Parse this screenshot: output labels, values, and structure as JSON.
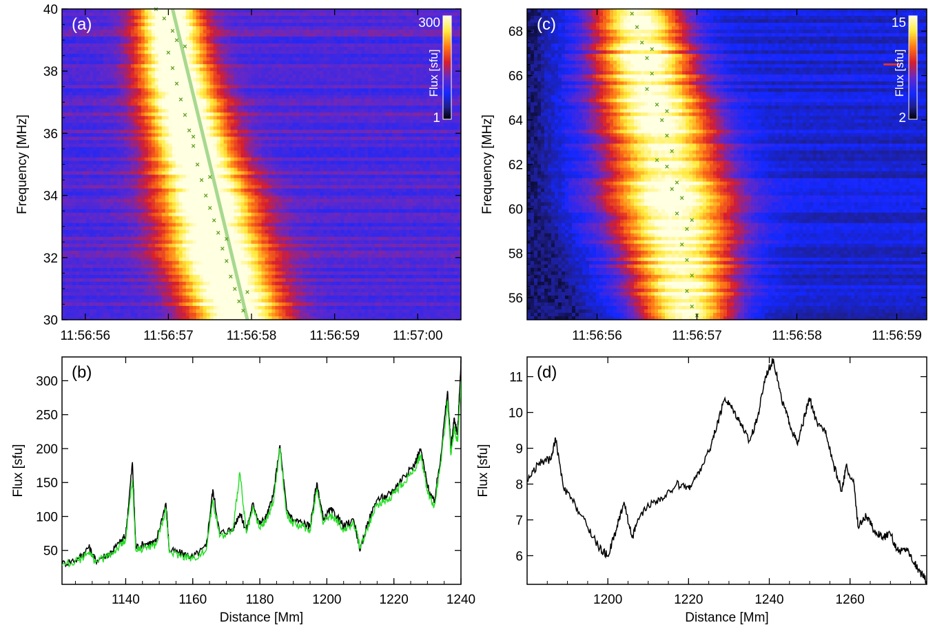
{
  "chart_data": [
    {
      "panel": "(a)",
      "type": "heatmap",
      "ylabel": "Frequency [MHz]",
      "xlabel": "",
      "ylim": [
        30,
        40
      ],
      "yticks": [
        "30",
        "32",
        "34",
        "36",
        "38",
        "40"
      ],
      "xticks": [
        "11:56:56",
        "11:56:57",
        "11:56:58",
        "11:56:59",
        "11:57:00"
      ],
      "colorbar": {
        "label": "Flux [sfu]",
        "min_label": "1",
        "max_label": "300",
        "min": 1,
        "max": 300
      },
      "fit_line": {
        "t_start_s": 57.05,
        "f_start": 40.0,
        "t_end_s": 57.95,
        "f_end": 30.0,
        "color": "#a8d890"
      },
      "burst_ridge": [
        {
          "f": 40.0,
          "t_center_s": 57.0,
          "width_s": 0.45
        },
        {
          "f": 38.0,
          "t_center_s": 57.08,
          "width_s": 0.55
        },
        {
          "f": 36.0,
          "t_center_s": 57.25,
          "width_s": 0.6
        },
        {
          "f": 34.0,
          "t_center_s": 57.45,
          "width_s": 0.7
        },
        {
          "f": 32.0,
          "t_center_s": 57.6,
          "width_s": 0.75
        },
        {
          "f": 30.0,
          "t_center_s": 57.85,
          "width_s": 0.7
        }
      ],
      "peak_markers": [
        [
          56.85,
          40.0
        ],
        [
          56.95,
          39.7
        ],
        [
          57.05,
          39.3
        ],
        [
          57.1,
          39.0
        ],
        [
          57.0,
          38.6
        ],
        [
          57.05,
          38.1
        ],
        [
          57.1,
          37.6
        ],
        [
          57.15,
          37.1
        ],
        [
          57.2,
          36.6
        ],
        [
          57.25,
          36.1
        ],
        [
          57.3,
          35.6
        ],
        [
          57.35,
          35.0
        ],
        [
          57.4,
          34.5
        ],
        [
          57.45,
          34.0
        ],
        [
          57.5,
          33.6
        ],
        [
          57.55,
          33.2
        ],
        [
          57.6,
          32.8
        ],
        [
          57.65,
          32.3
        ],
        [
          57.7,
          31.9
        ],
        [
          57.75,
          31.4
        ],
        [
          57.8,
          31.0
        ],
        [
          57.85,
          30.6
        ],
        [
          57.9,
          30.3
        ],
        [
          57.2,
          38.8
        ],
        [
          57.3,
          35.9
        ],
        [
          57.5,
          34.6
        ],
        [
          57.7,
          32.6
        ],
        [
          57.95,
          30.9
        ]
      ]
    },
    {
      "panel": "(b)",
      "type": "line",
      "xlabel": "Distance [Mm]",
      "ylabel": "Flux [sfu]",
      "xlim": [
        1121,
        1240
      ],
      "ylim": [
        0,
        335
      ],
      "xticks": [
        "1140",
        "1160",
        "1180",
        "1200",
        "1220",
        "1240"
      ],
      "yticks": [
        "50",
        "100",
        "150",
        "200",
        "250",
        "300"
      ],
      "series": [
        {
          "color": "#000000",
          "values": [
            [
              1121,
              30
            ],
            [
              1126,
              38
            ],
            [
              1129,
              55
            ],
            [
              1131,
              35
            ],
            [
              1135,
              45
            ],
            [
              1138,
              60
            ],
            [
              1140,
              72
            ],
            [
              1142,
              180
            ],
            [
              1143,
              55
            ],
            [
              1146,
              60
            ],
            [
              1149,
              62
            ],
            [
              1152,
              120
            ],
            [
              1153,
              50
            ],
            [
              1157,
              45
            ],
            [
              1160,
              40
            ],
            [
              1164,
              55
            ],
            [
              1166,
              140
            ],
            [
              1168,
              75
            ],
            [
              1172,
              82
            ],
            [
              1174,
              105
            ],
            [
              1176,
              80
            ],
            [
              1178,
              120
            ],
            [
              1180,
              88
            ],
            [
              1182,
              100
            ],
            [
              1184,
              130
            ],
            [
              1186,
              205
            ],
            [
              1188,
              110
            ],
            [
              1190,
              95
            ],
            [
              1193,
              90
            ],
            [
              1195,
              85
            ],
            [
              1197,
              150
            ],
            [
              1199,
              95
            ],
            [
              1201,
              110
            ],
            [
              1203,
              100
            ],
            [
              1205,
              85
            ],
            [
              1208,
              95
            ],
            [
              1210,
              50
            ],
            [
              1212,
              88
            ],
            [
              1215,
              125
            ],
            [
              1218,
              130
            ],
            [
              1220,
              140
            ],
            [
              1223,
              160
            ],
            [
              1226,
              175
            ],
            [
              1228,
              200
            ],
            [
              1230,
              145
            ],
            [
              1232,
              120
            ],
            [
              1234,
              190
            ],
            [
              1236,
              285
            ],
            [
              1237,
              200
            ],
            [
              1238,
              245
            ],
            [
              1239,
              220
            ],
            [
              1240,
              330
            ]
          ]
        },
        {
          "color": "#22dd22",
          "values": [
            [
              1121,
              28
            ],
            [
              1126,
              35
            ],
            [
              1129,
              48
            ],
            [
              1131,
              33
            ],
            [
              1135,
              42
            ],
            [
              1138,
              55
            ],
            [
              1140,
              65
            ],
            [
              1142,
              155
            ],
            [
              1143,
              50
            ],
            [
              1146,
              55
            ],
            [
              1149,
              58
            ],
            [
              1152,
              110
            ],
            [
              1153,
              47
            ],
            [
              1157,
              42
            ],
            [
              1160,
              38
            ],
            [
              1164,
              50
            ],
            [
              1166,
              125
            ],
            [
              1168,
              70
            ],
            [
              1172,
              78
            ],
            [
              1174,
              165
            ],
            [
              1176,
              75
            ],
            [
              1178,
              112
            ],
            [
              1180,
              82
            ],
            [
              1182,
              95
            ],
            [
              1184,
              120
            ],
            [
              1186,
              200
            ],
            [
              1188,
              103
            ],
            [
              1190,
              90
            ],
            [
              1193,
              85
            ],
            [
              1195,
              80
            ],
            [
              1197,
              140
            ],
            [
              1199,
              90
            ],
            [
              1201,
              102
            ],
            [
              1203,
              95
            ],
            [
              1205,
              80
            ],
            [
              1208,
              90
            ],
            [
              1210,
              55
            ],
            [
              1212,
              82
            ],
            [
              1215,
              118
            ],
            [
              1218,
              122
            ],
            [
              1220,
              135
            ],
            [
              1223,
              150
            ],
            [
              1226,
              168
            ],
            [
              1228,
              190
            ],
            [
              1230,
              138
            ],
            [
              1232,
              115
            ],
            [
              1234,
              180
            ],
            [
              1236,
              270
            ],
            [
              1237,
              190
            ],
            [
              1238,
              230
            ],
            [
              1239,
              210
            ],
            [
              1240,
              300
            ]
          ]
        }
      ]
    },
    {
      "panel": "(c)",
      "type": "heatmap",
      "ylabel": "Frequency [MHz]",
      "xlabel": "",
      "ylim": [
        55,
        69
      ],
      "yticks": [
        "56",
        "58",
        "60",
        "62",
        "64",
        "66",
        "68"
      ],
      "xticks": [
        "11:56:56",
        "11:56:57",
        "11:56:58",
        "11:56:59"
      ],
      "colorbar": {
        "label": "Flux [sfu]",
        "min_label": "2",
        "max_label": "15",
        "min": 2,
        "max": 15
      },
      "burst_ridge": [
        {
          "f": 69.0,
          "t_center_s": 56.4,
          "width_s": 0.55
        },
        {
          "f": 66.0,
          "t_center_s": 56.5,
          "width_s": 0.65
        },
        {
          "f": 63.0,
          "t_center_s": 56.65,
          "width_s": 0.75
        },
        {
          "f": 60.0,
          "t_center_s": 56.75,
          "width_s": 0.8
        },
        {
          "f": 57.0,
          "t_center_s": 56.85,
          "width_s": 0.7
        },
        {
          "f": 55.0,
          "t_center_s": 56.9,
          "width_s": 0.6
        }
      ],
      "peak_markers": [
        [
          56.35,
          68.8
        ],
        [
          56.4,
          68.2
        ],
        [
          56.45,
          67.5
        ],
        [
          56.5,
          66.8
        ],
        [
          56.55,
          66.1
        ],
        [
          56.5,
          65.4
        ],
        [
          56.6,
          64.7
        ],
        [
          56.65,
          64.0
        ],
        [
          56.7,
          63.3
        ],
        [
          56.75,
          62.6
        ],
        [
          56.7,
          61.9
        ],
        [
          56.8,
          61.2
        ],
        [
          56.85,
          60.5
        ],
        [
          56.8,
          59.8
        ],
        [
          56.9,
          59.1
        ],
        [
          56.85,
          58.4
        ],
        [
          56.9,
          57.7
        ],
        [
          56.95,
          57.0
        ],
        [
          56.9,
          56.3
        ],
        [
          56.95,
          55.6
        ],
        [
          57.0,
          55.2
        ],
        [
          56.6,
          62.2
        ],
        [
          56.75,
          60.9
        ],
        [
          56.95,
          59.5
        ],
        [
          56.55,
          67.2
        ],
        [
          56.7,
          64.4
        ]
      ],
      "artifact": {
        "t_s": 58.95,
        "f": 66.5
      }
    },
    {
      "panel": "(d)",
      "type": "line",
      "xlabel": "Distance [Mm]",
      "ylabel": "Flux [sfu]",
      "xlim": [
        1180,
        1279
      ],
      "ylim": [
        5.2,
        11.55
      ],
      "xticks": [
        "1200",
        "1220",
        "1240",
        "1260"
      ],
      "yticks": [
        "6",
        "7",
        "8",
        "9",
        "10",
        "11"
      ],
      "series": [
        {
          "color": "#000000",
          "values": [
            [
              1180,
              8.1
            ],
            [
              1183,
              8.6
            ],
            [
              1186,
              8.7
            ],
            [
              1187,
              9.3
            ],
            [
              1189,
              7.9
            ],
            [
              1192,
              7.4
            ],
            [
              1195,
              6.8
            ],
            [
              1198,
              6.2
            ],
            [
              1200,
              6.0
            ],
            [
              1202,
              6.7
            ],
            [
              1204,
              7.5
            ],
            [
              1206,
              6.5
            ],
            [
              1208,
              7.1
            ],
            [
              1211,
              7.5
            ],
            [
              1214,
              7.6
            ],
            [
              1217,
              8.0
            ],
            [
              1220,
              7.9
            ],
            [
              1222,
              8.2
            ],
            [
              1225,
              8.9
            ],
            [
              1227,
              9.6
            ],
            [
              1229,
              10.4
            ],
            [
              1231,
              10.1
            ],
            [
              1233,
              9.7
            ],
            [
              1235,
              9.2
            ],
            [
              1237,
              9.8
            ],
            [
              1239,
              11.0
            ],
            [
              1241,
              11.5
            ],
            [
              1243,
              10.4
            ],
            [
              1245,
              9.7
            ],
            [
              1247,
              9.1
            ],
            [
              1249,
              10.0
            ],
            [
              1250,
              10.4
            ],
            [
              1252,
              9.6
            ],
            [
              1254,
              9.5
            ],
            [
              1256,
              8.5
            ],
            [
              1258,
              7.8
            ],
            [
              1259,
              8.5
            ],
            [
              1261,
              8.0
            ],
            [
              1262,
              6.8
            ],
            [
              1264,
              7.1
            ],
            [
              1266,
              6.7
            ],
            [
              1268,
              6.5
            ],
            [
              1270,
              6.6
            ],
            [
              1272,
              6.1
            ],
            [
              1274,
              6.2
            ],
            [
              1276,
              5.8
            ],
            [
              1277,
              5.6
            ],
            [
              1279,
              5.3
            ]
          ]
        }
      ]
    }
  ]
}
